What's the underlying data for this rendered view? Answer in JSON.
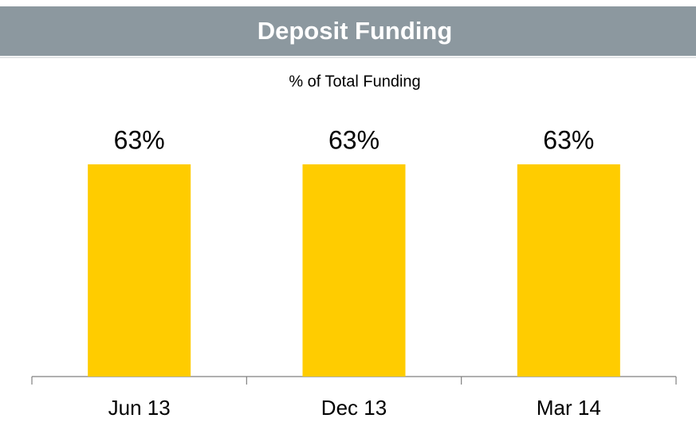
{
  "chart_data": {
    "type": "bar",
    "title": "Deposit Funding",
    "subtitle": "% of Total Funding",
    "categories": [
      "Jun 13",
      "Dec 13",
      "Mar 14"
    ],
    "values": [
      63,
      63,
      63
    ],
    "value_labels": [
      "63%",
      "63%",
      "63%"
    ],
    "color": "#ffcc00"
  }
}
